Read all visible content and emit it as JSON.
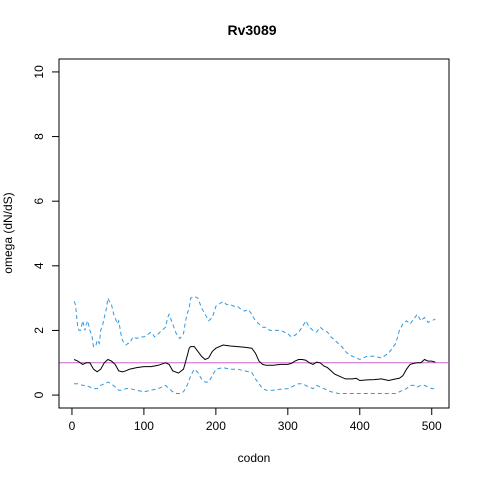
{
  "chart_data": {
    "type": "line",
    "title": "Rv3089",
    "xlabel": "codon",
    "ylabel": "omega (dN/dS)",
    "xlim": [
      -18,
      524
    ],
    "ylim": [
      -0.4,
      10.4
    ],
    "xticks": [
      0,
      100,
      200,
      300,
      400,
      500
    ],
    "yticks": [
      0,
      2,
      4,
      6,
      8,
      10
    ],
    "reference_line": {
      "y": 1,
      "color": "#cc66cc"
    },
    "colors": {
      "estimate": "#000000",
      "ci": "#3399dd"
    },
    "series": [
      {
        "style": "solid",
        "x": [
          3,
          8,
          15,
          20,
          25,
          30,
          35,
          40,
          45,
          50,
          55,
          60,
          65,
          70,
          75,
          80,
          90,
          100,
          110,
          120,
          130,
          135,
          140,
          148,
          155,
          160,
          163,
          165,
          170,
          175,
          180,
          185,
          190,
          195,
          200,
          210,
          220,
          230,
          240,
          250,
          255,
          260,
          265,
          270,
          280,
          290,
          300,
          305,
          310,
          315,
          320,
          325,
          330,
          335,
          340,
          345,
          350,
          355,
          360,
          365,
          370,
          375,
          380,
          385,
          390,
          395,
          400,
          410,
          420,
          430,
          440,
          450,
          455,
          460,
          465,
          470,
          475,
          480,
          485,
          490,
          495,
          500,
          505
        ],
        "y": [
          1.1,
          1.05,
          0.95,
          1.0,
          1.0,
          0.8,
          0.72,
          0.8,
          1.0,
          1.1,
          1.05,
          0.95,
          0.75,
          0.72,
          0.75,
          0.8,
          0.85,
          0.88,
          0.88,
          0.92,
          1.0,
          0.95,
          0.75,
          0.68,
          0.8,
          1.2,
          1.45,
          1.5,
          1.5,
          1.35,
          1.2,
          1.1,
          1.15,
          1.35,
          1.45,
          1.55,
          1.52,
          1.5,
          1.48,
          1.45,
          1.3,
          1.05,
          0.95,
          0.92,
          0.92,
          0.95,
          0.95,
          0.98,
          1.05,
          1.1,
          1.1,
          1.08,
          1.0,
          0.95,
          1.02,
          1.0,
          0.9,
          0.85,
          0.75,
          0.65,
          0.6,
          0.55,
          0.5,
          0.5,
          0.5,
          0.52,
          0.45,
          0.47,
          0.48,
          0.5,
          0.45,
          0.5,
          0.52,
          0.6,
          0.8,
          0.95,
          0.98,
          1.0,
          1.0,
          1.1,
          1.05,
          1.05,
          1.02
        ]
      },
      {
        "style": "dashed",
        "x": [
          3,
          5,
          8,
          10,
          12,
          15,
          18,
          20,
          22,
          25,
          28,
          30,
          33,
          35,
          38,
          40,
          43,
          45,
          48,
          50,
          52,
          55,
          58,
          60,
          63,
          65,
          68,
          70,
          73,
          75,
          78,
          80,
          85,
          90,
          95,
          100,
          110,
          115,
          120,
          125,
          130,
          133,
          135,
          140,
          145,
          150,
          155,
          158,
          160,
          163,
          165,
          170,
          175,
          180,
          185,
          190,
          195,
          200,
          210,
          215,
          220,
          225,
          230,
          235,
          240,
          245,
          250,
          255,
          260,
          265,
          270,
          275,
          280,
          290,
          300,
          305,
          310,
          315,
          320,
          325,
          330,
          335,
          340,
          345,
          350,
          355,
          360,
          365,
          370,
          375,
          380,
          385,
          390,
          395,
          400,
          410,
          420,
          430,
          440,
          450,
          455,
          460,
          465,
          470,
          475,
          480,
          485,
          490,
          495,
          500,
          505
        ],
        "y": [
          2.9,
          2.8,
          2.1,
          2.0,
          2.0,
          2.3,
          2.0,
          2.2,
          2.3,
          2.0,
          1.8,
          1.5,
          1.5,
          1.7,
          1.6,
          2.0,
          2.2,
          2.4,
          2.7,
          3.0,
          2.9,
          2.8,
          2.5,
          2.4,
          2.2,
          2.3,
          1.9,
          1.7,
          1.6,
          1.55,
          1.6,
          1.6,
          1.8,
          1.75,
          1.8,
          1.8,
          1.95,
          1.8,
          1.9,
          2.0,
          2.1,
          2.4,
          2.5,
          2.2,
          1.9,
          1.75,
          1.9,
          2.3,
          2.5,
          2.7,
          3.0,
          3.05,
          3.0,
          2.7,
          2.5,
          2.3,
          2.4,
          2.75,
          2.9,
          2.8,
          2.8,
          2.75,
          2.75,
          2.65,
          2.6,
          2.65,
          2.5,
          2.3,
          2.2,
          2.1,
          2.1,
          2.0,
          2.0,
          2.0,
          1.9,
          1.8,
          1.85,
          1.95,
          2.1,
          2.3,
          2.1,
          2.0,
          1.95,
          2.1,
          2.0,
          1.95,
          1.8,
          1.7,
          1.6,
          1.5,
          1.35,
          1.25,
          1.2,
          1.15,
          1.1,
          1.2,
          1.2,
          1.15,
          1.3,
          1.6,
          2.0,
          2.2,
          2.3,
          2.2,
          2.35,
          2.5,
          2.3,
          2.4,
          2.25,
          2.3,
          2.35
        ]
      },
      {
        "style": "dashed",
        "x": [
          3,
          8,
          15,
          20,
          25,
          30,
          35,
          40,
          45,
          50,
          55,
          60,
          65,
          70,
          75,
          80,
          90,
          100,
          110,
          120,
          130,
          135,
          140,
          145,
          150,
          155,
          160,
          165,
          170,
          175,
          180,
          185,
          190,
          195,
          200,
          210,
          220,
          230,
          240,
          250,
          255,
          260,
          265,
          270,
          280,
          290,
          300,
          305,
          310,
          315,
          320,
          325,
          330,
          335,
          340,
          345,
          350,
          355,
          360,
          365,
          370,
          375,
          380,
          390,
          400,
          410,
          420,
          430,
          440,
          450,
          455,
          460,
          465,
          470,
          475,
          480,
          485,
          490,
          495,
          500,
          505
        ],
        "y": [
          0.35,
          0.35,
          0.3,
          0.3,
          0.25,
          0.2,
          0.2,
          0.3,
          0.35,
          0.4,
          0.35,
          0.25,
          0.15,
          0.15,
          0.2,
          0.2,
          0.15,
          0.1,
          0.15,
          0.2,
          0.3,
          0.2,
          0.1,
          0.05,
          0.05,
          0.1,
          0.3,
          0.6,
          0.8,
          0.7,
          0.5,
          0.4,
          0.4,
          0.6,
          0.8,
          0.85,
          0.8,
          0.8,
          0.75,
          0.7,
          0.5,
          0.35,
          0.2,
          0.15,
          0.15,
          0.18,
          0.2,
          0.25,
          0.3,
          0.35,
          0.35,
          0.3,
          0.25,
          0.2,
          0.3,
          0.25,
          0.2,
          0.15,
          0.1,
          0.08,
          0.05,
          0.05,
          0.05,
          0.05,
          0.05,
          0.05,
          0.05,
          0.05,
          0.05,
          0.05,
          0.1,
          0.15,
          0.2,
          0.3,
          0.3,
          0.25,
          0.3,
          0.3,
          0.25,
          0.2,
          0.2
        ]
      }
    ]
  }
}
